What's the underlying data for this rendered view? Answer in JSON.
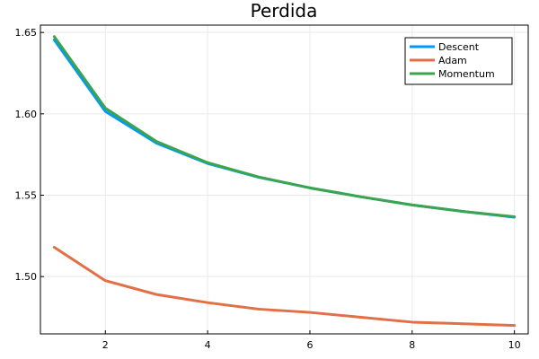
{
  "chart_data": {
    "type": "line",
    "title": "Perdida",
    "xlabel": "",
    "ylabel": "",
    "x": [
      1,
      2,
      3,
      4,
      5,
      6,
      7,
      8,
      9,
      10
    ],
    "xlim": [
      0.73,
      10.27
    ],
    "ylim": [
      1.4648,
      1.6545
    ],
    "xticks": [
      2,
      4,
      6,
      8,
      10
    ],
    "xtick_labels": [
      "2",
      "4",
      "6",
      "8",
      "10"
    ],
    "yticks": [
      1.5,
      1.55,
      1.6,
      1.65
    ],
    "ytick_labels": [
      "1.50",
      "1.55",
      "1.60",
      "1.65"
    ],
    "grid": true,
    "legend_position": "top-right",
    "series": [
      {
        "name": "Descent",
        "color": "#009AFA",
        "values": [
          1.6455,
          1.6015,
          1.582,
          1.5695,
          1.561,
          1.5545,
          1.549,
          1.544,
          1.54,
          1.5365
        ]
      },
      {
        "name": "Adam",
        "color": "#E26F46",
        "values": [
          1.518,
          1.4975,
          1.489,
          1.484,
          1.48,
          1.478,
          1.475,
          1.472,
          1.471,
          1.47
        ]
      },
      {
        "name": "Momentum",
        "color": "#3DA44E",
        "values": [
          1.6475,
          1.6035,
          1.583,
          1.57,
          1.5612,
          1.5545,
          1.549,
          1.544,
          1.54,
          1.5368
        ]
      }
    ]
  }
}
